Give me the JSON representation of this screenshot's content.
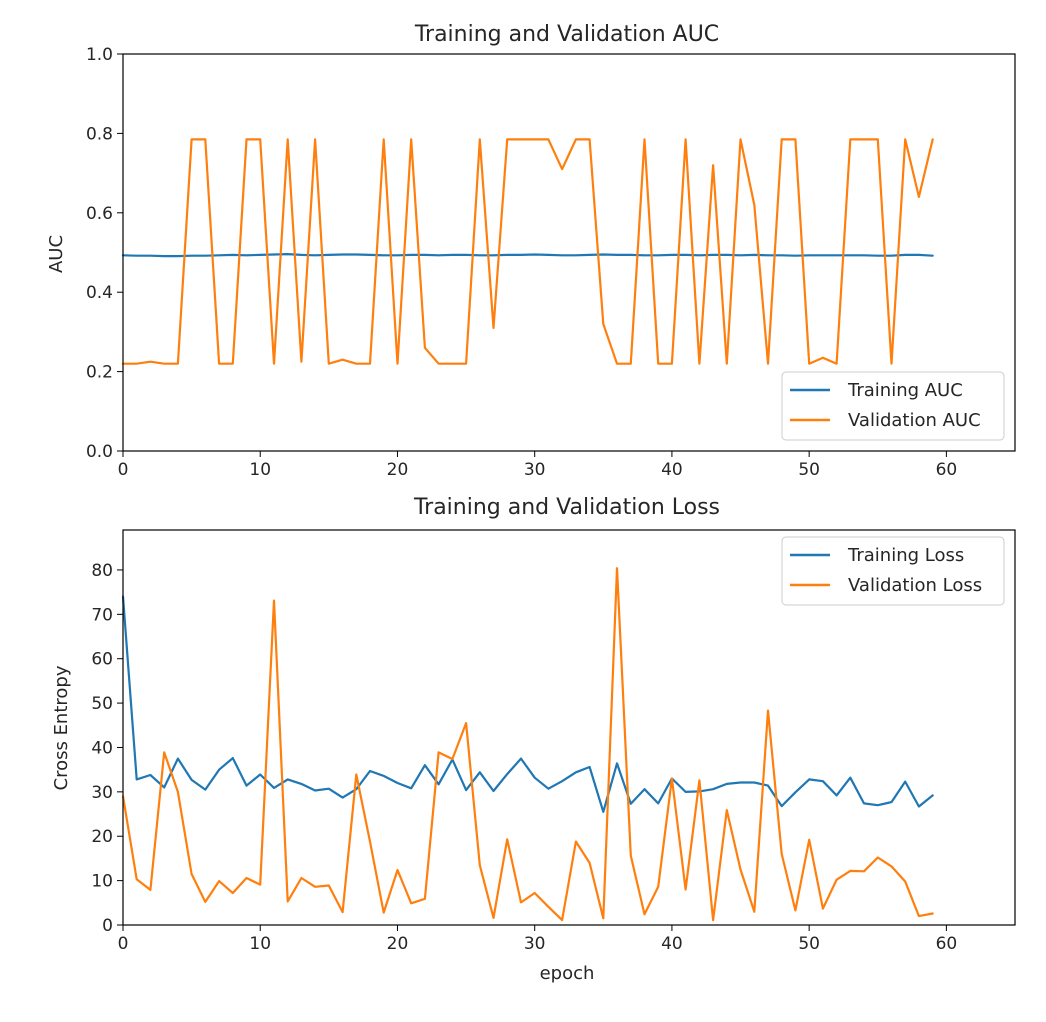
{
  "colors": {
    "series1": "#1f77b4",
    "series2": "#ff7f0e",
    "axis": "#000000",
    "legend_border": "#cccccc"
  },
  "chart_data": [
    {
      "type": "line",
      "title": "Training and Validation AUC",
      "xlabel": "",
      "ylabel": "AUC",
      "xlim": [
        0,
        65
      ],
      "ylim": [
        0,
        1.0
      ],
      "xticks": [
        0,
        10,
        20,
        30,
        40,
        50,
        60
      ],
      "yticks": [
        0.0,
        0.2,
        0.4,
        0.6,
        0.8,
        1.0
      ],
      "ytick_labels": [
        "0.0",
        "0.2",
        "0.4",
        "0.6",
        "0.8",
        "1.0"
      ],
      "grid": false,
      "legend_position": "lower-right",
      "series": [
        {
          "name": "Training AUC",
          "x": [
            0,
            1,
            2,
            3,
            4,
            5,
            6,
            7,
            8,
            9,
            10,
            11,
            12,
            13,
            14,
            15,
            16,
            17,
            18,
            19,
            20,
            21,
            22,
            23,
            24,
            25,
            26,
            27,
            28,
            29,
            30,
            31,
            32,
            33,
            34,
            35,
            36,
            37,
            38,
            39,
            40,
            41,
            42,
            43,
            44,
            45,
            46,
            47,
            48,
            49,
            50,
            51,
            52,
            53,
            54,
            55,
            56,
            57,
            58,
            59
          ],
          "y": [
            0.493,
            0.492,
            0.492,
            0.491,
            0.491,
            0.492,
            0.492,
            0.493,
            0.494,
            0.493,
            0.494,
            0.495,
            0.496,
            0.494,
            0.493,
            0.494,
            0.495,
            0.495,
            0.494,
            0.493,
            0.493,
            0.494,
            0.494,
            0.493,
            0.494,
            0.494,
            0.493,
            0.493,
            0.494,
            0.494,
            0.495,
            0.494,
            0.493,
            0.493,
            0.494,
            0.495,
            0.494,
            0.494,
            0.493,
            0.493,
            0.494,
            0.494,
            0.493,
            0.494,
            0.494,
            0.493,
            0.494,
            0.493,
            0.493,
            0.492,
            0.493,
            0.493,
            0.493,
            0.493,
            0.493,
            0.492,
            0.492,
            0.494,
            0.494,
            0.492
          ]
        },
        {
          "name": "Validation AUC",
          "x": [
            0,
            1,
            2,
            3,
            4,
            5,
            6,
            7,
            8,
            9,
            10,
            11,
            12,
            13,
            14,
            15,
            16,
            17,
            18,
            19,
            20,
            21,
            22,
            23,
            24,
            25,
            26,
            27,
            28,
            29,
            30,
            31,
            32,
            33,
            34,
            35,
            36,
            37,
            38,
            39,
            40,
            41,
            42,
            43,
            44,
            45,
            46,
            47,
            48,
            49,
            50,
            51,
            52,
            53,
            54,
            55,
            56,
            57,
            58,
            59
          ],
          "y": [
            0.22,
            0.22,
            0.225,
            0.22,
            0.22,
            0.785,
            0.785,
            0.22,
            0.22,
            0.785,
            0.785,
            0.22,
            0.785,
            0.225,
            0.785,
            0.22,
            0.23,
            0.22,
            0.22,
            0.785,
            0.22,
            0.785,
            0.26,
            0.22,
            0.22,
            0.22,
            0.785,
            0.31,
            0.785,
            0.785,
            0.785,
            0.785,
            0.71,
            0.785,
            0.785,
            0.32,
            0.22,
            0.22,
            0.785,
            0.22,
            0.22,
            0.785,
            0.22,
            0.72,
            0.22,
            0.785,
            0.62,
            0.22,
            0.785,
            0.785,
            0.22,
            0.235,
            0.22,
            0.785,
            0.785,
            0.785,
            0.22,
            0.785,
            0.64,
            0.785
          ]
        }
      ]
    },
    {
      "type": "line",
      "title": "Training and Validation Loss",
      "xlabel": "epoch",
      "ylabel": "Cross Entropy",
      "xlim": [
        0,
        65
      ],
      "ylim": [
        0,
        89
      ],
      "xticks": [
        0,
        10,
        20,
        30,
        40,
        50,
        60
      ],
      "yticks": [
        0,
        10,
        20,
        30,
        40,
        50,
        60,
        70,
        80
      ],
      "ytick_labels": [
        "0",
        "10",
        "20",
        "30",
        "40",
        "50",
        "60",
        "70",
        "80"
      ],
      "grid": false,
      "legend_position": "upper-right",
      "series": [
        {
          "name": "Training Loss",
          "x": [
            0,
            1,
            2,
            3,
            4,
            5,
            6,
            7,
            8,
            9,
            10,
            11,
            12,
            13,
            14,
            15,
            16,
            17,
            18,
            19,
            20,
            21,
            22,
            23,
            24,
            25,
            26,
            27,
            28,
            29,
            30,
            31,
            32,
            33,
            34,
            35,
            36,
            37,
            38,
            39,
            40,
            41,
            42,
            43,
            44,
            45,
            46,
            47,
            48,
            49,
            50,
            51,
            52,
            53,
            54,
            55,
            56,
            57,
            58,
            59
          ],
          "y": [
            74,
            32.8,
            33.8,
            31,
            37.5,
            32.7,
            30.5,
            35,
            37.6,
            31.4,
            33.9,
            30.9,
            32.8,
            31.8,
            30.3,
            30.7,
            28.7,
            30.6,
            34.7,
            33.6,
            32,
            30.8,
            36,
            31.7,
            37.3,
            30.4,
            34.4,
            30.2,
            34,
            37.5,
            33.2,
            30.7,
            32.4,
            34.4,
            35.6,
            25.5,
            36.4,
            27.3,
            30.6,
            27.4,
            33,
            30,
            30.1,
            30.6,
            31.8,
            32.1,
            32.1,
            31.4,
            26.8,
            29.9,
            32.8,
            32.4,
            29.2,
            33.2,
            27.4,
            27,
            27.7,
            32.3,
            26.7,
            29.2
          ]
        },
        {
          "name": "Validation Loss",
          "x": [
            0,
            1,
            2,
            3,
            4,
            5,
            6,
            7,
            8,
            9,
            10,
            11,
            12,
            13,
            14,
            15,
            16,
            17,
            18,
            19,
            20,
            21,
            22,
            23,
            24,
            25,
            26,
            27,
            28,
            29,
            30,
            31,
            32,
            33,
            34,
            35,
            36,
            37,
            38,
            39,
            40,
            41,
            42,
            43,
            44,
            45,
            46,
            47,
            48,
            49,
            50,
            51,
            52,
            53,
            54,
            55,
            56,
            57,
            58,
            59
          ],
          "y": [
            29,
            10.3,
            7.9,
            38.9,
            30,
            11.5,
            5.2,
            9.9,
            7.2,
            10.6,
            9.1,
            73.1,
            5.3,
            10.6,
            8.6,
            8.9,
            2.9,
            33.9,
            18.8,
            2.8,
            12.4,
            4.9,
            5.9,
            38.9,
            37.4,
            45.5,
            13.5,
            1.6,
            19.3,
            5.1,
            7.2,
            4.1,
            1.1,
            18.8,
            14,
            1.5,
            80.4,
            15.6,
            2.4,
            8.6,
            33,
            8,
            32.6,
            1.1,
            25.9,
            12.5,
            3,
            48.3,
            16,
            3.3,
            19.2,
            3.7,
            10.2,
            12.2,
            12.1,
            15.2,
            13.2,
            9.8,
            2,
            2.6
          ]
        }
      ]
    }
  ]
}
